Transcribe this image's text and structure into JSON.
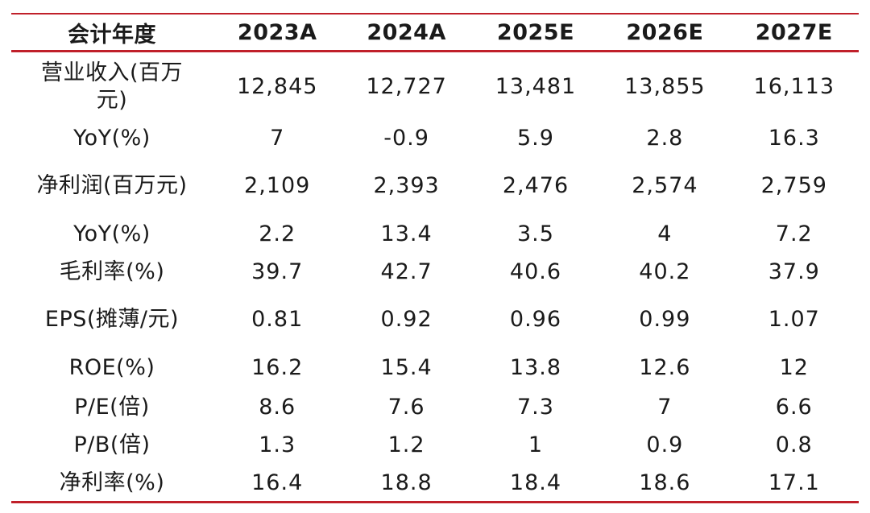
{
  "table": {
    "columns": [
      "会计年度",
      "2023A",
      "2024A",
      "2025E",
      "2026E",
      "2027E"
    ],
    "rows": [
      {
        "label": "营业收入(百万元)",
        "values": [
          "12,845",
          "12,727",
          "13,481",
          "13,855",
          "16,113"
        ]
      },
      {
        "label": "YoY(%)",
        "values": [
          "7",
          "-0.9",
          "5.9",
          "2.8",
          "16.3"
        ]
      },
      {
        "label": "净利润(百万元)",
        "values": [
          "2,109",
          "2,393",
          "2,476",
          "2,574",
          "2,759"
        ]
      },
      {
        "label": "YoY(%)",
        "values": [
          "2.2",
          "13.4",
          "3.5",
          "4",
          "7.2"
        ]
      },
      {
        "label": "毛利率(%)",
        "values": [
          "39.7",
          "42.7",
          "40.6",
          "40.2",
          "37.9"
        ]
      },
      {
        "label": "EPS(摊薄/元)",
        "values": [
          "0.81",
          "0.92",
          "0.96",
          "0.99",
          "1.07"
        ]
      },
      {
        "label": "ROE(%)",
        "values": [
          "16.2",
          "15.4",
          "13.8",
          "12.6",
          "12"
        ]
      },
      {
        "label": "P/E(倍)",
        "values": [
          "8.6",
          "7.6",
          "7.3",
          "7",
          "6.6"
        ]
      },
      {
        "label": "P/B(倍)",
        "values": [
          "1.3",
          "1.2",
          "1",
          "0.9",
          "0.8"
        ]
      },
      {
        "label": "净利率(%)",
        "values": [
          "16.4",
          "18.8",
          "18.4",
          "18.6",
          "17.1"
        ]
      }
    ]
  },
  "colors": {
    "rule": "#c0202a",
    "text": "#1a1a1a"
  }
}
